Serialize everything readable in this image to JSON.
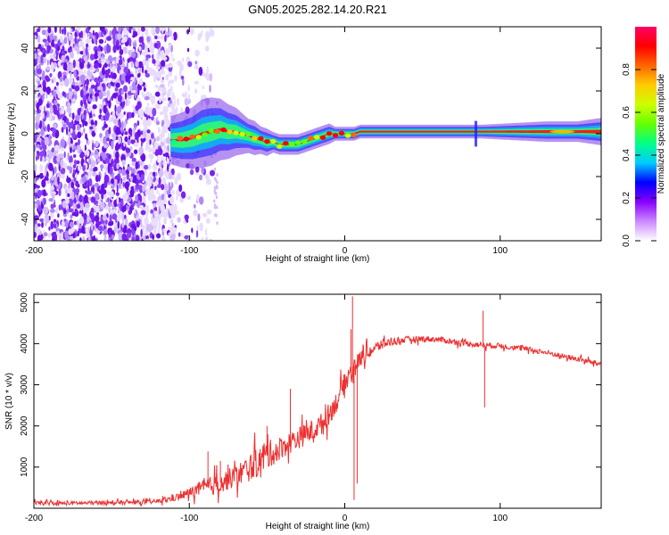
{
  "figure_title": "GN05.2025.282.14.20.R21",
  "colors": {
    "snr_line": "#ee3030",
    "axis": "#000000",
    "background": "#ffffff"
  },
  "chart_data": [
    {
      "type": "heatmap",
      "title": "GN05.2025.282.14.20.R21",
      "xlabel": "Height of straight line (km)",
      "ylabel": "Frequency (Hz)",
      "xlim": [
        -200,
        165
      ],
      "ylim": [
        -50,
        50
      ],
      "xticks": [
        -200,
        -100,
        0,
        100
      ],
      "xtick_labels": [
        "-200",
        "-100",
        "0",
        "100"
      ],
      "yticks": [
        -40,
        -20,
        0,
        20,
        40
      ],
      "ytick_labels": [
        "-40",
        "-20",
        "0",
        "20",
        "40"
      ],
      "noise_region_x": [
        -200,
        -110
      ],
      "carrier_track": {
        "x": [
          -112,
          -105,
          -98,
          -92,
          -86,
          -80,
          -75,
          -70,
          -66,
          -62,
          -58,
          -54,
          -50,
          -46,
          -42,
          -38,
          -34,
          -30,
          -26,
          -22,
          -18,
          -14,
          -10,
          -6,
          -2,
          2,
          6,
          10,
          80,
          84,
          88,
          130,
          150,
          165
        ],
        "freq": [
          -3,
          -3,
          -2,
          0,
          1,
          2,
          1,
          1,
          0,
          -1,
          -2,
          -3,
          -4,
          -4,
          -5,
          -5,
          -5,
          -5,
          -4,
          -3,
          -2,
          -1,
          0,
          0,
          0,
          0,
          0,
          1,
          1,
          1,
          1,
          1,
          1,
          1
        ],
        "width": [
          7,
          8,
          9,
          10,
          10,
          9,
          8,
          7,
          6,
          5,
          5,
          4,
          4,
          3,
          3,
          3,
          3,
          3,
          3,
          3,
          3,
          3,
          3,
          2,
          2,
          2,
          2,
          2,
          2,
          2,
          2,
          3,
          3,
          4
        ]
      },
      "colorbar": {
        "label": "Normalized spectral amplitude",
        "range": [
          0,
          1
        ],
        "ticks": [
          0.0,
          0.2,
          0.4,
          0.6,
          0.8
        ],
        "tick_labels": [
          "0.0",
          "0.2",
          "0.4",
          "0.6",
          "0.8"
        ],
        "colors": [
          "#ffffff",
          "#cc88ff",
          "#8800ff",
          "#0000ff",
          "#00ccff",
          "#00ff88",
          "#66ff00",
          "#ccff00",
          "#ffcc00",
          "#ff6600",
          "#ff0000",
          "#ff0066"
        ]
      }
    },
    {
      "type": "line",
      "xlabel": "Height of straight line (km)",
      "ylabel": "SNR (10 * v/v)",
      "xlim": [
        -200,
        165
      ],
      "ylim": [
        0,
        5200
      ],
      "xticks": [
        -200,
        -100,
        0,
        100
      ],
      "xtick_labels": [
        "-200",
        "-100",
        "0",
        "100"
      ],
      "yticks": [
        1000,
        2000,
        3000,
        4000,
        5000
      ],
      "ytick_labels": [
        "1000",
        "2000",
        "3000",
        "4000",
        "5000"
      ],
      "series": [
        {
          "name": "SNR",
          "color": "#ee3030",
          "x": [
            -200,
            -180,
            -160,
            -140,
            -125,
            -115,
            -105,
            -100,
            -95,
            -90,
            -85,
            -80,
            -75,
            -70,
            -65,
            -60,
            -55,
            -50,
            -45,
            -40,
            -35,
            -30,
            -25,
            -20,
            -15,
            -10,
            -5,
            -2,
            2,
            5,
            8,
            12,
            16,
            20,
            25,
            30,
            40,
            50,
            60,
            70,
            80,
            90,
            100,
            110,
            120,
            130,
            140,
            150,
            160,
            165
          ],
          "mean": [
            120,
            120,
            130,
            140,
            150,
            200,
            300,
            380,
            450,
            500,
            560,
            620,
            700,
            780,
            900,
            1000,
            1150,
            1300,
            1380,
            1500,
            1600,
            1700,
            1800,
            1900,
            2050,
            2300,
            2600,
            2900,
            3200,
            3400,
            3550,
            3700,
            3800,
            3900,
            4000,
            4050,
            4100,
            4120,
            4100,
            4050,
            4000,
            3960,
            3950,
            3900,
            3850,
            3780,
            3700,
            3620,
            3540,
            3500
          ],
          "noise": [
            60,
            60,
            60,
            60,
            60,
            80,
            120,
            150,
            200,
            250,
            300,
            300,
            320,
            340,
            380,
            420,
            450,
            450,
            380,
            350,
            330,
            330,
            330,
            330,
            330,
            330,
            320,
            300,
            300,
            280,
            250,
            220,
            200,
            180,
            150,
            130,
            100,
            90,
            90,
            90,
            90,
            90,
            80,
            80,
            80,
            80,
            80,
            80,
            80,
            80
          ]
        }
      ],
      "spikes": [
        {
          "x": -88,
          "y": 1380
        },
        {
          "x": -80,
          "y": 1150
        },
        {
          "x": -50,
          "y": 2000
        },
        {
          "x": -35,
          "y": 2900
        },
        {
          "x": 4,
          "y": 4350
        },
        {
          "x": 5,
          "y": 5150
        },
        {
          "x": 6,
          "y": 200
        },
        {
          "x": 8,
          "y": 600
        },
        {
          "x": 10,
          "y": 3800
        },
        {
          "x": 12,
          "y": 3950
        },
        {
          "x": 89,
          "y": 4800
        },
        {
          "x": 90,
          "y": 2450
        }
      ]
    }
  ]
}
